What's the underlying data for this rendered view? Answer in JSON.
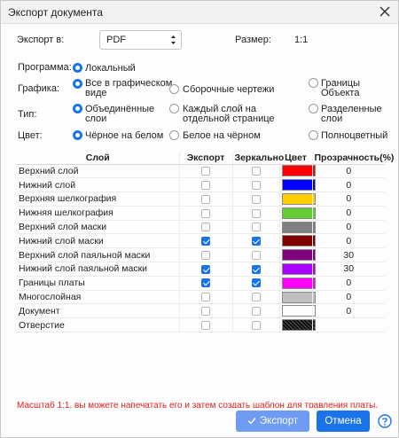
{
  "window": {
    "title": "Экспорт документа"
  },
  "export_to": {
    "label": "Экспорт в:",
    "value": "PDF"
  },
  "size": {
    "label": "Размер:",
    "value": "1:1"
  },
  "program": {
    "label": "Программа:",
    "options": [
      {
        "label": "Локальный",
        "selected": true
      }
    ]
  },
  "graphics": {
    "label": "Графика:",
    "options": [
      {
        "label": "Все в графическом виде",
        "selected": true
      },
      {
        "label": "Сборочные чертежи",
        "selected": false
      },
      {
        "label": "Границы Объекта",
        "selected": false
      }
    ]
  },
  "type": {
    "label": "Тип:",
    "options": [
      {
        "label": "Объединённые слои",
        "selected": true
      },
      {
        "label": "Каждый слой на отдельной странице",
        "selected": false
      },
      {
        "label": "Разделенные слои",
        "selected": false
      }
    ]
  },
  "color": {
    "label": "Цвет:",
    "options": [
      {
        "label": "Чёрное на белом",
        "selected": true
      },
      {
        "label": "Белое на чёрном",
        "selected": false
      },
      {
        "label": "Полноцветный",
        "selected": false
      }
    ]
  },
  "table": {
    "headers": {
      "layer": "Слой",
      "export": "Экспорт",
      "mirror": "Зеркально",
      "color": "Цвет",
      "transparency": "Прозрачность(%)"
    },
    "rows": [
      {
        "name": "Верхний слой",
        "export": false,
        "mirror": false,
        "color": "#ff0000",
        "transparency": "0"
      },
      {
        "name": "Нижний слой",
        "export": false,
        "mirror": false,
        "color": "#0000ff",
        "transparency": "0"
      },
      {
        "name": "Верхняя шелкография",
        "export": false,
        "mirror": false,
        "color": "#ffcc00",
        "transparency": "0"
      },
      {
        "name": "Нижняя шелкография",
        "export": false,
        "mirror": false,
        "color": "#66cc33",
        "transparency": "0"
      },
      {
        "name": "Верхний слой маски",
        "export": false,
        "mirror": false,
        "color": "#808080",
        "transparency": "0"
      },
      {
        "name": "Нижний слой маски",
        "export": true,
        "mirror": true,
        "color": "#800000",
        "transparency": "0"
      },
      {
        "name": "Верхний слой паяльной маски",
        "export": false,
        "mirror": false,
        "color": "#800080",
        "transparency": "30"
      },
      {
        "name": "Нижний слой паяльной маски",
        "export": true,
        "mirror": true,
        "color": "#aa00ff",
        "transparency": "30"
      },
      {
        "name": "Границы платы",
        "export": true,
        "mirror": true,
        "color": "#ff00ff",
        "transparency": "0"
      },
      {
        "name": "Многослойная",
        "export": false,
        "mirror": false,
        "color": "#c0c0c0",
        "transparency": "0"
      },
      {
        "name": "Документ",
        "export": false,
        "mirror": false,
        "color": "#ffffff",
        "transparency": "0"
      },
      {
        "name": "Отверстие",
        "export": false,
        "mirror": false,
        "color": "#222222",
        "transparency": ""
      }
    ]
  },
  "note": "Масштаб 1:1, вы можете напечатать его и затем создать шаблон для травления платы.",
  "buttons": {
    "export": "Экспорт",
    "cancel": "Отмена"
  },
  "colors": {
    "accent": "#1a73e8",
    "export_button": "#6f9cf2",
    "note": "#e02020"
  }
}
